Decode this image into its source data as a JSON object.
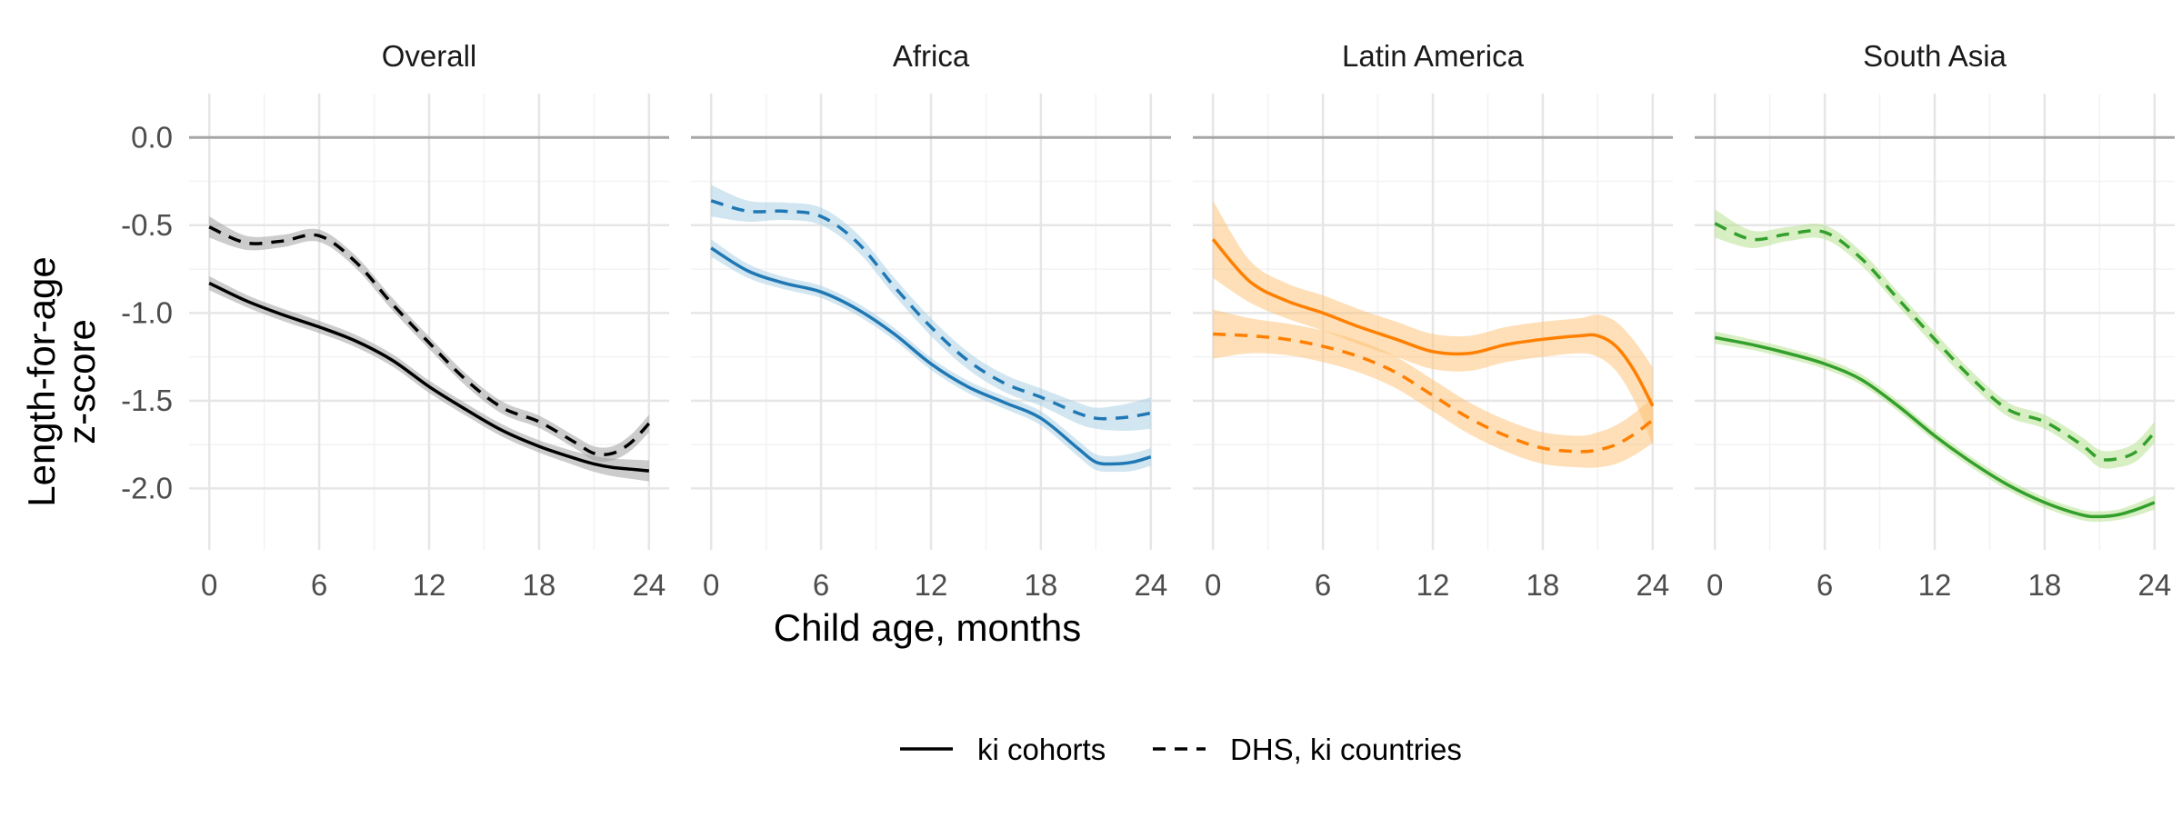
{
  "chart_data": {
    "type": "line",
    "xlabel": "Child age, months",
    "ylabel_lines": [
      "Length-for-age",
      "z-score"
    ],
    "x_ticks": [
      0,
      6,
      12,
      18,
      24
    ],
    "x_tick_labels": [
      "0",
      "6",
      "12",
      "18",
      "24"
    ],
    "y_ticks": [
      0,
      -0.5,
      -1,
      -1.5,
      -2
    ],
    "y_tick_labels": [
      "0.0",
      "-0.5",
      "-1.0",
      "-1.5",
      "-2.0"
    ],
    "xlim": [
      -1.1,
      25.1
    ],
    "ylim": [
      -2.35,
      0.25
    ],
    "grid": true,
    "reference_line": 0,
    "legend_position": "bottom",
    "legend": [
      {
        "label": "ki cohorts",
        "linestyle": "solid"
      },
      {
        "label": "DHS, ki countries",
        "linestyle": "dashed"
      }
    ],
    "x": [
      0,
      2,
      4,
      6,
      8,
      10,
      12,
      14,
      16,
      18,
      20,
      21,
      22,
      23,
      24
    ],
    "panels": [
      {
        "title": "Overall",
        "color": "#000000",
        "band_color": "#999999",
        "series": [
          {
            "name": "ki cohorts",
            "linestyle": "solid",
            "values": [
              -0.83,
              -0.93,
              -1.01,
              -1.08,
              -1.16,
              -1.27,
              -1.42,
              -1.55,
              -1.67,
              -1.76,
              -1.83,
              -1.86,
              -1.88,
              -1.89,
              -1.9
            ],
            "ci": [
              0.04,
              0.035,
              0.035,
              0.035,
              0.035,
              0.035,
              0.035,
              0.035,
              0.035,
              0.035,
              0.04,
              0.045,
              0.05,
              0.055,
              0.06
            ]
          },
          {
            "name": "DHS, ki countries",
            "linestyle": "dashed",
            "values": [
              -0.51,
              -0.6,
              -0.59,
              -0.56,
              -0.71,
              -0.95,
              -1.17,
              -1.38,
              -1.54,
              -1.62,
              -1.74,
              -1.8,
              -1.8,
              -1.74,
              -1.63
            ],
            "ci": [
              0.06,
              0.04,
              0.035,
              0.035,
              0.035,
              0.035,
              0.035,
              0.035,
              0.035,
              0.035,
              0.035,
              0.04,
              0.04,
              0.045,
              0.05
            ]
          }
        ]
      },
      {
        "title": "Africa",
        "color": "#1f78b4",
        "band_color": "#a6cee3",
        "series": [
          {
            "name": "ki cohorts",
            "linestyle": "solid",
            "values": [
              -0.63,
              -0.76,
              -0.83,
              -0.88,
              -0.98,
              -1.12,
              -1.29,
              -1.42,
              -1.51,
              -1.6,
              -1.77,
              -1.85,
              -1.86,
              -1.85,
              -1.82
            ],
            "ci": [
              0.05,
              0.04,
              0.035,
              0.035,
              0.035,
              0.035,
              0.035,
              0.035,
              0.035,
              0.04,
              0.045,
              0.045,
              0.045,
              0.05,
              0.05
            ]
          },
          {
            "name": "DHS, ki countries",
            "linestyle": "dashed",
            "values": [
              -0.36,
              -0.42,
              -0.42,
              -0.45,
              -0.6,
              -0.85,
              -1.08,
              -1.27,
              -1.4,
              -1.48,
              -1.57,
              -1.6,
              -1.6,
              -1.59,
              -1.57
            ],
            "ci": [
              0.09,
              0.06,
              0.05,
              0.05,
              0.05,
              0.05,
              0.05,
              0.05,
              0.05,
              0.05,
              0.06,
              0.06,
              0.07,
              0.08,
              0.09
            ]
          }
        ]
      },
      {
        "title": "Latin America",
        "color": "#ff7f00",
        "band_color": "#fdbf6f",
        "series": [
          {
            "name": "ki cohorts",
            "linestyle": "solid",
            "values": [
              -0.58,
              -0.82,
              -0.93,
              -1.0,
              -1.08,
              -1.15,
              -1.22,
              -1.23,
              -1.18,
              -1.15,
              -1.13,
              -1.13,
              -1.19,
              -1.33,
              -1.53
            ],
            "ci": [
              0.22,
              0.12,
              0.1,
              0.1,
              0.1,
              0.1,
              0.1,
              0.1,
              0.1,
              0.1,
              0.1,
              0.12,
              0.14,
              0.17,
              0.22
            ]
          },
          {
            "name": "DHS, ki countries",
            "linestyle": "dashed",
            "values": [
              -1.12,
              -1.13,
              -1.15,
              -1.19,
              -1.25,
              -1.34,
              -1.47,
              -1.6,
              -1.7,
              -1.77,
              -1.79,
              -1.78,
              -1.75,
              -1.69,
              -1.61
            ],
            "ci": [
              0.14,
              0.1,
              0.09,
              0.09,
              0.09,
              0.09,
              0.09,
              0.09,
              0.09,
              0.09,
              0.09,
              0.1,
              0.11,
              0.12,
              0.13
            ]
          }
        ]
      },
      {
        "title": "South Asia",
        "color": "#33a02c",
        "band_color": "#b2df8a",
        "series": [
          {
            "name": "ki cohorts",
            "linestyle": "solid",
            "values": [
              -1.14,
              -1.18,
              -1.23,
              -1.29,
              -1.38,
              -1.53,
              -1.7,
              -1.85,
              -1.98,
              -2.08,
              -2.15,
              -2.16,
              -2.15,
              -2.12,
              -2.08
            ],
            "ci": [
              0.035,
              0.03,
              0.03,
              0.03,
              0.03,
              0.03,
              0.03,
              0.03,
              0.03,
              0.03,
              0.03,
              0.03,
              0.03,
              0.035,
              0.04
            ]
          },
          {
            "name": "DHS, ki countries",
            "linestyle": "dashed",
            "values": [
              -0.49,
              -0.58,
              -0.55,
              -0.54,
              -0.69,
              -0.92,
              -1.15,
              -1.37,
              -1.55,
              -1.62,
              -1.75,
              -1.83,
              -1.83,
              -1.79,
              -1.68
            ],
            "ci": [
              0.08,
              0.05,
              0.04,
              0.04,
              0.04,
              0.04,
              0.04,
              0.04,
              0.04,
              0.04,
              0.045,
              0.05,
              0.05,
              0.055,
              0.06
            ]
          }
        ]
      }
    ]
  }
}
